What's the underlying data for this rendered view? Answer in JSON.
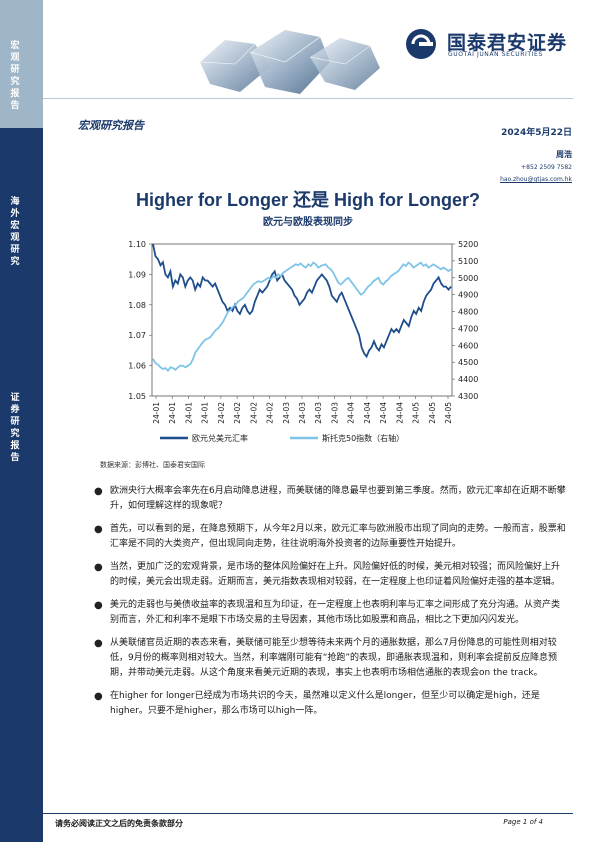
{
  "sidebar": {
    "section1": "宏观研究报告",
    "section2": "海外宏观研究",
    "section3": "证券研究报告"
  },
  "logo": {
    "cn": "国泰君安证券",
    "en": "GUOTAI JUNAN SECURITIES"
  },
  "header": {
    "report_type": "宏观研究报告",
    "date": "2024年5月22日"
  },
  "author": {
    "name": "周浩",
    "phone": "+852 2509 7582",
    "email": "hao.zhou@gtjas.com.hk"
  },
  "title": "Higher for Longer 还是 High for Longer?",
  "subtitle": "欧元与欧股表现同步",
  "chart_data": {
    "type": "line",
    "title": "",
    "x_tick_labels": [
      "24-01",
      "24-01",
      "24-01",
      "24-01",
      "24-02",
      "24-02",
      "24-02",
      "24-02",
      "24-03",
      "24-03",
      "24-03",
      "24-03",
      "24-04",
      "24-04",
      "24-04",
      "24-04",
      "24-05",
      "24-05",
      "24-05"
    ],
    "left_axis": {
      "ylim": [
        1.05,
        1.1
      ],
      "ticks": [
        "1.10",
        "1.09",
        "1.08",
        "1.07",
        "1.06",
        "1.05"
      ]
    },
    "right_axis": {
      "ylim": [
        4300,
        5200
      ],
      "ticks": [
        "5200",
        "5100",
        "5000",
        "4900",
        "4800",
        "4700",
        "4600",
        "4500",
        "4400",
        "4300"
      ]
    },
    "series": [
      {
        "name": "欧元兑美元汇率",
        "axis": "left",
        "color": "#1f4e8c",
        "values": [
          1.104,
          1.096,
          1.095,
          1.093,
          1.094,
          1.09,
          1.089,
          1.091,
          1.086,
          1.088,
          1.087,
          1.09,
          1.089,
          1.086,
          1.088,
          1.089,
          1.088,
          1.085,
          1.087,
          1.086,
          1.089,
          1.088,
          1.088,
          1.087,
          1.086,
          1.087,
          1.085,
          1.083,
          1.081,
          1.08,
          1.078,
          1.079,
          1.078,
          1.08,
          1.078,
          1.077,
          1.079,
          1.08,
          1.078,
          1.077,
          1.078,
          1.081,
          1.083,
          1.085,
          1.084,
          1.085,
          1.086,
          1.088,
          1.09,
          1.091,
          1.088,
          1.089,
          1.09,
          1.088,
          1.087,
          1.086,
          1.085,
          1.083,
          1.082,
          1.08,
          1.081,
          1.082,
          1.084,
          1.085,
          1.084,
          1.086,
          1.088,
          1.089,
          1.09,
          1.089,
          1.088,
          1.086,
          1.083,
          1.082,
          1.081,
          1.083,
          1.084,
          1.082,
          1.08,
          1.078,
          1.076,
          1.074,
          1.072,
          1.07,
          1.066,
          1.064,
          1.063,
          1.065,
          1.066,
          1.068,
          1.066,
          1.065,
          1.067,
          1.066,
          1.068,
          1.07,
          1.072,
          1.071,
          1.072,
          1.071,
          1.073,
          1.075,
          1.074,
          1.073,
          1.076,
          1.078,
          1.077,
          1.079,
          1.078,
          1.081,
          1.083,
          1.084,
          1.085,
          1.087,
          1.088,
          1.089,
          1.087,
          1.086,
          1.086,
          1.085,
          1.086
        ]
      },
      {
        "name": "斯托克50指数（右轴）",
        "axis": "right",
        "color": "#7fc4e8",
        "values": [
          4520,
          4495,
          4485,
          4470,
          4460,
          4465,
          4450,
          4470,
          4465,
          4455,
          4470,
          4480,
          4478,
          4470,
          4480,
          4490,
          4520,
          4560,
          4580,
          4600,
          4620,
          4635,
          4640,
          4650,
          4670,
          4690,
          4700,
          4720,
          4740,
          4770,
          4800,
          4810,
          4830,
          4840,
          4860,
          4870,
          4880,
          4900,
          4920,
          4940,
          4960,
          4970,
          4980,
          4975,
          4980,
          4990,
          5000,
          4990,
          5010,
          5000,
          5020,
          5010,
          5030,
          5040,
          5050,
          5060,
          5070,
          5080,
          5075,
          5085,
          5070,
          5060,
          5080,
          5070,
          5090,
          5080,
          5060,
          5070,
          5075,
          5080,
          5060,
          5050,
          5030,
          5000,
          4970,
          4960,
          4975,
          4990,
          5000,
          4980,
          4960,
          4940,
          4920,
          4900,
          4910,
          4930,
          4950,
          4960,
          4980,
          4990,
          5000,
          4970,
          4960,
          4980,
          4990,
          5010,
          5020,
          5030,
          5040,
          5060,
          5080,
          5070,
          5090,
          5080,
          5060,
          5070,
          5080,
          5090,
          5070,
          5080,
          5060,
          5070,
          5080,
          5070,
          5060,
          5050,
          5060,
          5050,
          5040,
          5050
        ]
      }
    ],
    "legend_position": "bottom"
  },
  "source": "数据来源：彭博社、国泰君安国际",
  "bullets": [
    "欧洲央行大概率会率先在6月启动降息进程，而美联储的降息最早也要到第三季度。然而，欧元汇率却在近期不断攀升，如何理解这样的现象呢？",
    "首先，可以看到的是，在降息预期下，从今年2月以来，欧元汇率与欧洲股市出现了同向的走势。一般而言，股票和汇率是不同的大类资产，但出现同向走势，往往说明海外投资者的边际重要性开始提升。",
    "当然，更加广泛的宏观背景，是市场的整体风险偏好在上升。风险偏好低的时候，美元相对较强；而风险偏好上升的时候，美元会出现走弱。近期而言，美元指数表现相对较弱，在一定程度上也印证着风险偏好走强的基本逻辑。",
    "美元的走弱也与美债收益率的表现温和互为印证，在一定程度上也表明利率与汇率之间形成了充分沟通。从资产类别而言，外汇和利率不是眼下市场交易的主导因素，其他市场比如股票和商品，相比之下更加闪闪发光。",
    "从美联储官员近期的表态来看，美联储可能至少想等待未来两个月的通胀数据，那么7月份降息的可能性则相对较低，9月份的概率则相对较大。当然，利率端刚可能有“抢跑”的表现，即通胀表现温和，则利率会提前反应降息预期，并带动美元走弱。从这个角度来看美元近期的表现，事实上也表明市场相信通胀的表现会on the track。",
    "在higher for longer已经成为市场共识的今天，虽然难以定义什么是longer，但至少可以确定是high，还是higher。只要不是higher，那么市场可以high一阵。"
  ],
  "footer": {
    "disclaimer": "请务必阅读正文之后的免责条款部分",
    "page": "Page 1 of 4"
  }
}
